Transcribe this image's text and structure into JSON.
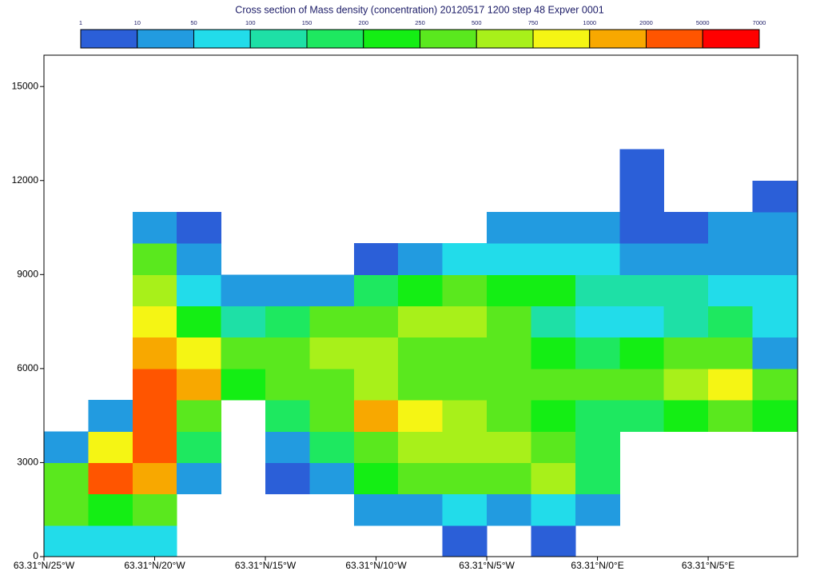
{
  "chart_data": {
    "type": "heatmap",
    "title": "Cross section of Mass density (concentration) 20120517 1200 step 48 Expver 0001",
    "levels": [
      1,
      10,
      50,
      100,
      150,
      200,
      250,
      500,
      750,
      1000,
      2000,
      5000,
      7000
    ],
    "colors": [
      "#2b5fd8",
      "#229be0",
      "#22dcea",
      "#1ee0a6",
      "#1ee860",
      "#14ee14",
      "#5ae81e",
      "#a8f01a",
      "#f5f514",
      "#f8a800",
      "#ff5500",
      "#ff0000"
    ],
    "x_edges": [
      -25,
      -23,
      -21,
      -19,
      -17,
      -15,
      -13,
      -11,
      -9,
      -7,
      -5,
      -3,
      -1,
      1,
      3,
      5,
      7,
      9
    ],
    "y_edges": [
      0,
      1000,
      2000,
      3000,
      4000,
      5000,
      6000,
      7000,
      8000,
      9000,
      10000,
      11000,
      12000,
      13000
    ],
    "z": [
      [
        50,
        60,
        80,
        null,
        null,
        null,
        null,
        null,
        null,
        5,
        null,
        5,
        null,
        null,
        null,
        null,
        null
      ],
      [
        250,
        200,
        300,
        null,
        null,
        null,
        null,
        10,
        20,
        60,
        30,
        60,
        20,
        null,
        null,
        null,
        null
      ],
      [
        300,
        2500,
        1500,
        10,
        null,
        5,
        20,
        200,
        250,
        400,
        300,
        500,
        150,
        null,
        null,
        null,
        null
      ],
      [
        30,
        800,
        3000,
        150,
        null,
        30,
        150,
        300,
        500,
        600,
        600,
        350,
        180,
        null,
        null,
        null,
        null
      ],
      [
        null,
        20,
        2500,
        400,
        null,
        150,
        300,
        1200,
        900,
        550,
        400,
        220,
        180,
        150,
        200,
        250,
        200
      ],
      [
        null,
        null,
        2000,
        1200,
        200,
        300,
        400,
        600,
        400,
        350,
        400,
        300,
        300,
        400,
        550,
        800,
        280
      ],
      [
        null,
        null,
        1500,
        800,
        300,
        300,
        550,
        550,
        350,
        400,
        300,
        200,
        150,
        220,
        300,
        250,
        20
      ],
      [
        null,
        null,
        900,
        200,
        120,
        150,
        280,
        300,
        500,
        700,
        350,
        100,
        80,
        80,
        120,
        150,
        80
      ],
      [
        null,
        null,
        600,
        50,
        20,
        20,
        30,
        150,
        200,
        300,
        200,
        200,
        120,
        100,
        100,
        80,
        70
      ],
      [
        null,
        null,
        300,
        20,
        null,
        null,
        null,
        5,
        30,
        60,
        80,
        60,
        50,
        40,
        30,
        40,
        30
      ],
      [
        null,
        null,
        20,
        5,
        null,
        null,
        null,
        null,
        null,
        null,
        20,
        10,
        10,
        5,
        5,
        10,
        10
      ],
      [
        null,
        null,
        null,
        null,
        null,
        null,
        null,
        null,
        null,
        null,
        null,
        null,
        null,
        5,
        null,
        null,
        5
      ],
      [
        null,
        null,
        null,
        null,
        null,
        null,
        null,
        null,
        null,
        null,
        null,
        null,
        null,
        5,
        null,
        null,
        null
      ]
    ],
    "xlim": [
      -25,
      9.04
    ],
    "xticks": [
      {
        "value": -25,
        "label": "63.31°N/25°W"
      },
      {
        "value": -20,
        "label": "63.31°N/20°W"
      },
      {
        "value": -15,
        "label": "63.31°N/15°W"
      },
      {
        "value": -10,
        "label": "63.31°N/10°W"
      },
      {
        "value": -5,
        "label": "63.31°N/5°W"
      },
      {
        "value": 0,
        "label": "63.31°N/0°E"
      },
      {
        "value": 5,
        "label": "63.31°N/5°E"
      }
    ],
    "ylim": [
      0,
      16000
    ],
    "yticks": [
      0,
      3000,
      6000,
      9000,
      12000,
      15000
    ]
  }
}
